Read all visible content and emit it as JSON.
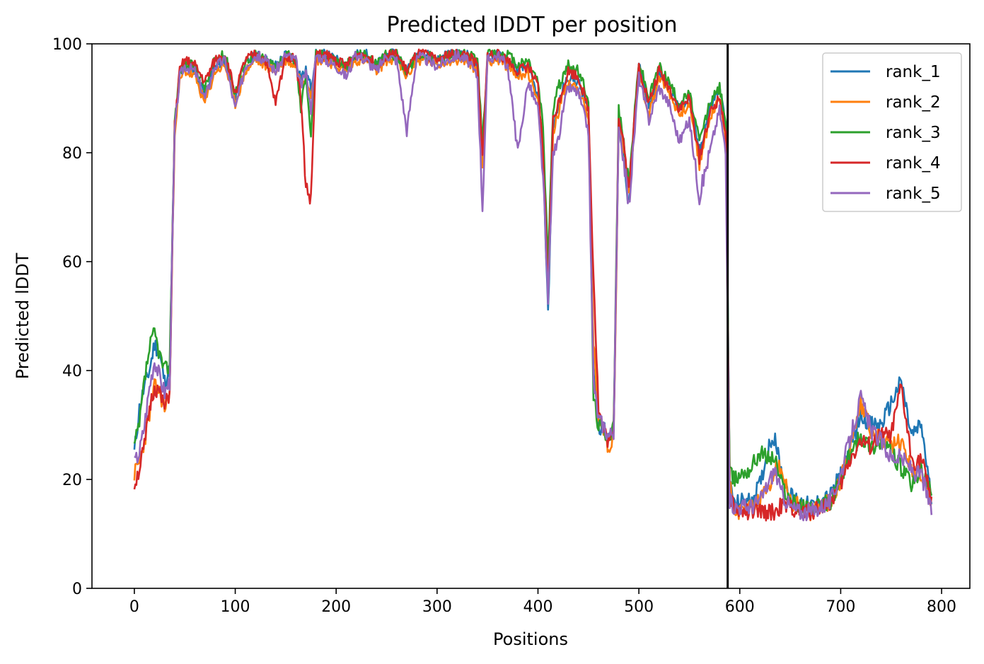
{
  "chart_data": {
    "type": "line",
    "title": "Predicted lDDT per position",
    "xlabel": "Positions",
    "ylabel": "Predicted lDDT",
    "xlim": [
      -42,
      828
    ],
    "ylim": [
      0,
      100
    ],
    "xticks": [
      0,
      100,
      200,
      300,
      400,
      500,
      600,
      700,
      800
    ],
    "yticks": [
      0,
      20,
      40,
      60,
      80,
      100
    ],
    "grid": false,
    "legend_position": "top-right",
    "vline_x": 588,
    "vline_color": "#000000",
    "series": [
      {
        "name": "rank_1",
        "color": "#1f77b4",
        "x": [
          0,
          5,
          10,
          15,
          20,
          25,
          30,
          35,
          40,
          45,
          50,
          60,
          70,
          80,
          90,
          100,
          110,
          120,
          130,
          140,
          150,
          160,
          165,
          170,
          175,
          180,
          190,
          200,
          210,
          220,
          230,
          240,
          250,
          260,
          270,
          280,
          290,
          300,
          310,
          320,
          330,
          340,
          345,
          350,
          360,
          370,
          380,
          390,
          400,
          405,
          410,
          415,
          420,
          425,
          430,
          440,
          450,
          455,
          460,
          465,
          470,
          475,
          480,
          485,
          490,
          500,
          510,
          520,
          530,
          540,
          550,
          560,
          570,
          580,
          586,
          590,
          595,
          600,
          610,
          620,
          630,
          635,
          640,
          650,
          660,
          670,
          680,
          690,
          700,
          710,
          720,
          730,
          740,
          750,
          760,
          770,
          775,
          780,
          790
        ],
        "y": [
          25,
          33,
          37,
          40,
          45,
          43,
          38,
          40,
          85,
          94,
          96,
          95,
          91,
          96,
          97,
          90,
          96,
          98,
          97,
          96,
          98,
          97,
          94,
          95,
          92,
          98,
          98,
          97,
          96,
          98,
          98,
          96,
          98,
          98,
          95,
          98,
          98,
          97,
          98,
          98,
          98,
          96,
          78,
          98,
          98,
          97,
          95,
          96,
          90,
          80,
          50,
          85,
          88,
          92,
          94,
          93,
          88,
          40,
          30,
          29,
          28,
          29,
          85,
          80,
          70,
          96,
          88,
          95,
          92,
          88,
          90,
          80,
          88,
          92,
          85,
          20,
          15,
          16,
          16,
          19,
          27,
          28,
          22,
          17,
          16,
          15,
          16,
          17,
          21,
          26,
          32,
          30,
          30,
          34,
          38,
          28,
          29,
          30,
          16
        ],
        "seed": 11
      },
      {
        "name": "rank_2",
        "color": "#ff7f0e",
        "x": [
          0,
          5,
          10,
          15,
          20,
          25,
          30,
          35,
          40,
          45,
          50,
          60,
          70,
          80,
          90,
          100,
          110,
          120,
          130,
          140,
          150,
          160,
          165,
          170,
          175,
          180,
          190,
          200,
          210,
          220,
          230,
          240,
          250,
          260,
          270,
          280,
          290,
          300,
          310,
          320,
          330,
          340,
          345,
          350,
          360,
          370,
          380,
          390,
          400,
          405,
          410,
          415,
          420,
          425,
          430,
          440,
          450,
          455,
          460,
          465,
          470,
          475,
          480,
          485,
          490,
          500,
          510,
          520,
          530,
          540,
          550,
          560,
          570,
          580,
          586,
          590,
          595,
          600,
          610,
          620,
          630,
          635,
          640,
          650,
          660,
          670,
          680,
          690,
          700,
          710,
          720,
          730,
          740,
          750,
          760,
          770,
          775,
          780,
          790
        ],
        "y": [
          21,
          23,
          27,
          32,
          37,
          36,
          33,
          36,
          84,
          93,
          95,
          94,
          89,
          95,
          96,
          89,
          95,
          97,
          96,
          95,
          97,
          96,
          93,
          94,
          91,
          97,
          97,
          96,
          95,
          97,
          97,
          95,
          97,
          97,
          94,
          97,
          97,
          96,
          97,
          97,
          97,
          95,
          76,
          97,
          97,
          96,
          94,
          95,
          89,
          78,
          54,
          84,
          87,
          91,
          93,
          92,
          86,
          45,
          32,
          29,
          26,
          28,
          84,
          81,
          72,
          95,
          87,
          94,
          91,
          87,
          89,
          78,
          86,
          90,
          83,
          19,
          15,
          14,
          15,
          16,
          19,
          22,
          22,
          16,
          15,
          14,
          15,
          16,
          20,
          27,
          34,
          29,
          27,
          26,
          27,
          22,
          21,
          21,
          16
        ],
        "seed": 23
      },
      {
        "name": "rank_3",
        "color": "#2ca02c",
        "x": [
          0,
          5,
          10,
          15,
          20,
          25,
          30,
          35,
          40,
          45,
          50,
          60,
          70,
          80,
          90,
          100,
          110,
          120,
          130,
          140,
          150,
          160,
          165,
          170,
          175,
          180,
          190,
          200,
          210,
          220,
          230,
          240,
          250,
          260,
          270,
          280,
          290,
          300,
          310,
          320,
          330,
          340,
          345,
          350,
          360,
          370,
          380,
          390,
          400,
          405,
          410,
          415,
          420,
          425,
          430,
          440,
          450,
          455,
          460,
          465,
          470,
          475,
          480,
          485,
          490,
          500,
          510,
          520,
          530,
          540,
          550,
          560,
          570,
          580,
          586,
          590,
          595,
          600,
          610,
          620,
          630,
          635,
          640,
          650,
          660,
          670,
          680,
          690,
          700,
          710,
          720,
          730,
          740,
          750,
          760,
          770,
          775,
          780,
          790
        ],
        "y": [
          26,
          30,
          38,
          44,
          47,
          43,
          40,
          41,
          86,
          95,
          96,
          96,
          92,
          97,
          98,
          91,
          97,
          98,
          97,
          96,
          98,
          97,
          88,
          95,
          83,
          98,
          98,
          97,
          96,
          98,
          98,
          96,
          98,
          98,
          95,
          98,
          98,
          97,
          98,
          98,
          98,
          97,
          82,
          98,
          98,
          98,
          96,
          97,
          93,
          85,
          60,
          88,
          92,
          94,
          96,
          95,
          90,
          35,
          30,
          29,
          28,
          30,
          88,
          82,
          74,
          97,
          90,
          96,
          93,
          89,
          91,
          82,
          89,
          92,
          86,
          21,
          20,
          21,
          22,
          25,
          24,
          24,
          20,
          16,
          15,
          15,
          15,
          16,
          20,
          25,
          28,
          26,
          27,
          25,
          22,
          19,
          20,
          22,
          17
        ],
        "seed": 37
      },
      {
        "name": "rank_4",
        "color": "#d62728",
        "x": [
          0,
          5,
          10,
          15,
          20,
          25,
          30,
          35,
          40,
          45,
          50,
          60,
          70,
          80,
          90,
          100,
          110,
          120,
          130,
          140,
          150,
          160,
          165,
          170,
          175,
          180,
          190,
          200,
          210,
          220,
          230,
          240,
          250,
          260,
          270,
          280,
          290,
          300,
          310,
          320,
          330,
          340,
          345,
          350,
          360,
          370,
          380,
          390,
          400,
          405,
          410,
          415,
          420,
          425,
          430,
          440,
          450,
          455,
          460,
          465,
          470,
          475,
          480,
          485,
          490,
          500,
          510,
          520,
          530,
          540,
          550,
          560,
          570,
          580,
          586,
          590,
          595,
          600,
          610,
          620,
          630,
          635,
          640,
          650,
          660,
          670,
          680,
          690,
          700,
          710,
          720,
          730,
          740,
          750,
          760,
          770,
          775,
          780,
          790
        ],
        "y": [
          19,
          22,
          26,
          33,
          37,
          36,
          33,
          36,
          85,
          95,
          97,
          96,
          93,
          97,
          98,
          91,
          97,
          98,
          97,
          89,
          98,
          97,
          90,
          74,
          71,
          98,
          98,
          97,
          96,
          98,
          98,
          96,
          98,
          98,
          95,
          98,
          98,
          97,
          98,
          98,
          98,
          96,
          79,
          98,
          98,
          97,
          95,
          96,
          92,
          80,
          55,
          86,
          89,
          92,
          95,
          94,
          88,
          58,
          33,
          29,
          27,
          28,
          87,
          82,
          73,
          96,
          89,
          95,
          92,
          88,
          90,
          79,
          87,
          90,
          84,
          17,
          15,
          14,
          14,
          14,
          14,
          14,
          15,
          15,
          14,
          14,
          15,
          16,
          19,
          24,
          27,
          26,
          28,
          28,
          37,
          24,
          23,
          24,
          16
        ],
        "seed": 51
      },
      {
        "name": "rank_5",
        "color": "#9467bd",
        "x": [
          0,
          5,
          10,
          15,
          20,
          25,
          30,
          35,
          40,
          45,
          50,
          60,
          70,
          80,
          90,
          100,
          110,
          120,
          130,
          140,
          150,
          160,
          165,
          170,
          175,
          180,
          190,
          200,
          210,
          220,
          230,
          240,
          250,
          260,
          270,
          280,
          290,
          300,
          310,
          320,
          330,
          340,
          345,
          350,
          360,
          370,
          380,
          390,
          400,
          405,
          410,
          415,
          420,
          425,
          430,
          440,
          450,
          455,
          460,
          465,
          470,
          475,
          480,
          485,
          490,
          500,
          510,
          520,
          530,
          540,
          550,
          560,
          570,
          580,
          586,
          590,
          595,
          600,
          610,
          620,
          630,
          635,
          640,
          650,
          660,
          670,
          680,
          690,
          700,
          710,
          720,
          730,
          740,
          750,
          760,
          770,
          775,
          780,
          790
        ],
        "y": [
          23,
          25,
          30,
          37,
          42,
          39,
          36,
          38,
          84,
          94,
          96,
          95,
          90,
          96,
          97,
          88,
          96,
          98,
          97,
          95,
          98,
          97,
          92,
          95,
          88,
          98,
          97,
          96,
          94,
          98,
          97,
          95,
          98,
          97,
          84,
          98,
          97,
          96,
          97,
          98,
          97,
          94,
          70,
          97,
          98,
          96,
          80,
          93,
          88,
          76,
          52,
          80,
          82,
          88,
          92,
          91,
          84,
          38,
          31,
          30,
          28,
          29,
          84,
          79,
          70,
          94,
          86,
          92,
          89,
          82,
          86,
          72,
          80,
          88,
          80,
          16,
          15,
          15,
          15,
          16,
          20,
          22,
          18,
          15,
          14,
          14,
          15,
          16,
          21,
          28,
          35,
          29,
          27,
          24,
          24,
          22,
          21,
          21,
          14
        ],
        "seed": 67
      }
    ]
  }
}
